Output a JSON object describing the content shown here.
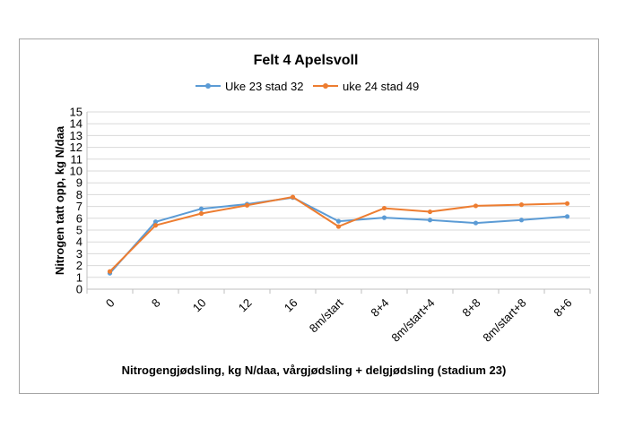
{
  "chart_data": {
    "type": "line",
    "title": "Felt 4 Apelsvoll",
    "xlabel": "Nitrogengjødsling, kg N/daa, vårgjødsling + delgjødsling (stadium 23)",
    "ylabel": "Nitrogen tatt opp, kg N/daa",
    "categories": [
      "0",
      "8",
      "10",
      "12",
      "16",
      "8m/start",
      "8+4",
      "8m/start+4",
      "8+8",
      "8m/start+8",
      "8+6"
    ],
    "ylim": [
      0,
      15
    ],
    "yticks": [
      0,
      1,
      2,
      3,
      4,
      5,
      6,
      7,
      8,
      9,
      10,
      11,
      12,
      13,
      14,
      15
    ],
    "grid": true,
    "legend": "top",
    "series": [
      {
        "name": "Uke 23 stad 32",
        "color": "#5b9bd5",
        "values": [
          1.35,
          5.7,
          6.8,
          7.2,
          7.75,
          5.75,
          6.05,
          5.85,
          5.6,
          5.85,
          6.15
        ]
      },
      {
        "name": "uke 24 stad 49",
        "color": "#ed7d31",
        "values": [
          1.5,
          5.4,
          6.4,
          7.1,
          7.8,
          5.3,
          6.85,
          6.55,
          7.05,
          7.15,
          7.25
        ]
      }
    ]
  }
}
